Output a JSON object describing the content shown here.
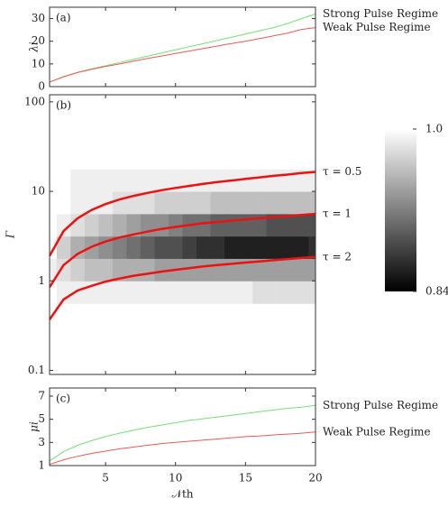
{
  "chart_data": [
    {
      "type": "line",
      "label": "(a)",
      "y_label": "λi",
      "x": [
        1,
        2,
        3,
        4,
        5,
        6,
        7,
        8,
        9,
        10,
        11,
        12,
        13,
        14,
        15,
        16,
        17,
        18,
        19,
        20
      ],
      "xlim": [
        1,
        20
      ],
      "xticks": [
        5,
        10,
        15,
        20
      ],
      "ylim": [
        0,
        35
      ],
      "yticks": [
        0,
        10,
        20,
        30
      ],
      "series": [
        {
          "name": "Strong Pulse Regime",
          "color": "#77dd77",
          "values": [
            2,
            4.5,
            6.3,
            7.8,
            9.2,
            10.6,
            12,
            13.4,
            14.8,
            16.2,
            17.6,
            19,
            20.4,
            21.8,
            23.2,
            24.6,
            26,
            27.8,
            30,
            32
          ]
        },
        {
          "name": "Weak Pulse Regime",
          "color": "#e85a5a",
          "values": [
            2,
            4.3,
            6.2,
            7.6,
            8.9,
            10,
            11.2,
            12.4,
            13.5,
            14.6,
            15.7,
            16.8,
            17.9,
            19,
            20,
            21.2,
            22.4,
            23.6,
            25.2,
            26
          ]
        }
      ]
    },
    {
      "type": "heatmap",
      "label": "(b)",
      "y_label": "Γ",
      "log_y": true,
      "x": [
        1,
        2,
        3,
        4,
        5,
        6,
        7,
        8,
        9,
        10,
        11,
        12,
        13,
        14,
        15,
        16,
        17,
        18,
        19,
        20
      ],
      "xlim": [
        1,
        20
      ],
      "xticks": [
        5,
        10,
        15,
        20
      ],
      "ylim": [
        0.09,
        120
      ],
      "yticks": [
        0.1,
        1,
        10,
        100
      ],
      "heatmap": {
        "y_bins": [
          0.1,
          0.18,
          0.32,
          0.56,
          1,
          1.78,
          3.16,
          5.62,
          10,
          17.8,
          31.6,
          56.2,
          100
        ],
        "z": [
          [
            1,
            1,
            1,
            1,
            1,
            1,
            1,
            1,
            1,
            1,
            1,
            1,
            1,
            1,
            1,
            1,
            1,
            1,
            1,
            1
          ],
          [
            1,
            1,
            1,
            1,
            1,
            1,
            1,
            1,
            1,
            1,
            1,
            1,
            1,
            1,
            1,
            1,
            1,
            1,
            1,
            1
          ],
          [
            1,
            1,
            1,
            1,
            1,
            1,
            1,
            1,
            1,
            1,
            1,
            1,
            1,
            1,
            1,
            1,
            1,
            1,
            1,
            1
          ],
          [
            1,
            0.99,
            0.99,
            0.99,
            0.99,
            0.99,
            0.99,
            0.99,
            0.99,
            0.99,
            0.99,
            0.99,
            0.99,
            0.99,
            0.99,
            0.98,
            0.98,
            0.98,
            0.98,
            0.98
          ],
          [
            0.99,
            0.98,
            0.97,
            0.96,
            0.96,
            0.95,
            0.95,
            0.95,
            0.94,
            0.94,
            0.94,
            0.94,
            0.94,
            0.94,
            0.94,
            0.94,
            0.94,
            0.94,
            0.94,
            0.94
          ],
          [
            1,
            0.97,
            0.95,
            0.94,
            0.93,
            0.92,
            0.91,
            0.9,
            0.89,
            0.89,
            0.88,
            0.87,
            0.87,
            0.86,
            0.86,
            0.86,
            0.86,
            0.86,
            0.86,
            0.87
          ],
          [
            1,
            0.99,
            0.98,
            0.97,
            0.96,
            0.95,
            0.94,
            0.93,
            0.93,
            0.92,
            0.91,
            0.91,
            0.9,
            0.9,
            0.9,
            0.9,
            0.89,
            0.89,
            0.89,
            0.89
          ],
          [
            1,
            1,
            0.99,
            0.99,
            0.99,
            0.98,
            0.98,
            0.98,
            0.97,
            0.97,
            0.97,
            0.97,
            0.96,
            0.96,
            0.96,
            0.96,
            0.96,
            0.96,
            0.96,
            0.96
          ],
          [
            1,
            1,
            0.99,
            0.99,
            0.99,
            0.99,
            0.99,
            0.99,
            0.99,
            0.99,
            0.99,
            0.99,
            0.99,
            0.99,
            0.99,
            0.99,
            0.99,
            0.99,
            0.99,
            0.99
          ],
          [
            1,
            1,
            1,
            1,
            1,
            1,
            1,
            1,
            1,
            1,
            1,
            1,
            1,
            1,
            1,
            1,
            1,
            1,
            1,
            1
          ],
          [
            1,
            1,
            1,
            1,
            1,
            1,
            1,
            1,
            1,
            1,
            1,
            1,
            1,
            1,
            1,
            1,
            1,
            1,
            1,
            1
          ],
          [
            1,
            1,
            1,
            1,
            1,
            1,
            1,
            1,
            1,
            1,
            1,
            1,
            1,
            1,
            1,
            1,
            1,
            1,
            1,
            1
          ]
        ]
      },
      "colorbar": {
        "zlim": [
          0.84,
          1
        ],
        "ticks": [
          {
            "value": 1,
            "label": "1.0"
          },
          0.84
        ]
      },
      "series": [
        {
          "name": "τ = 0.5",
          "color": "#ee1111",
          "values": [
            1.9,
            3.6,
            5,
            6.2,
            7.2,
            8.1,
            8.9,
            9.6,
            10.3,
            10.9,
            11.5,
            12.1,
            12.7,
            13.2,
            13.8,
            14.3,
            14.9,
            15.4,
            16,
            16.5
          ]
        },
        {
          "name": "τ = 1",
          "color": "#ee1111",
          "values": [
            0.85,
            1.5,
            2,
            2.4,
            2.75,
            3.05,
            3.3,
            3.55,
            3.8,
            4,
            4.2,
            4.4,
            4.55,
            4.7,
            4.85,
            5,
            5.15,
            5.3,
            5.45,
            5.6
          ]
        },
        {
          "name": "τ = 2",
          "color": "#ee1111",
          "values": [
            0.37,
            0.62,
            0.78,
            0.88,
            0.98,
            1.06,
            1.14,
            1.2,
            1.27,
            1.33,
            1.39,
            1.45,
            1.5,
            1.55,
            1.6,
            1.65,
            1.7,
            1.75,
            1.8,
            1.85
          ]
        }
      ]
    },
    {
      "type": "line",
      "label": "(c)",
      "y_label": "μi",
      "x_label": "𝒩th",
      "x": [
        1,
        2,
        3,
        4,
        5,
        6,
        7,
        8,
        9,
        10,
        11,
        12,
        13,
        14,
        15,
        16,
        17,
        18,
        19,
        20
      ],
      "xlim": [
        1,
        20
      ],
      "xticks": [
        5,
        10,
        15,
        20
      ],
      "ylim": [
        1,
        7.7
      ],
      "yticks": [
        1,
        3,
        5,
        7
      ],
      "series": [
        {
          "name": "Strong Pulse Regime",
          "color": "#77dd77",
          "values": [
            1.4,
            2.2,
            2.75,
            3.15,
            3.5,
            3.8,
            4.05,
            4.3,
            4.5,
            4.7,
            4.9,
            5.05,
            5.2,
            5.35,
            5.5,
            5.65,
            5.8,
            5.95,
            6.05,
            6.2
          ]
        },
        {
          "name": "Weak Pulse Regime",
          "color": "#e85a5a",
          "values": [
            1.1,
            1.5,
            1.8,
            2.05,
            2.25,
            2.45,
            2.6,
            2.75,
            2.9,
            3,
            3.1,
            3.2,
            3.3,
            3.4,
            3.5,
            3.55,
            3.65,
            3.72,
            3.8,
            3.9
          ]
        }
      ]
    }
  ]
}
